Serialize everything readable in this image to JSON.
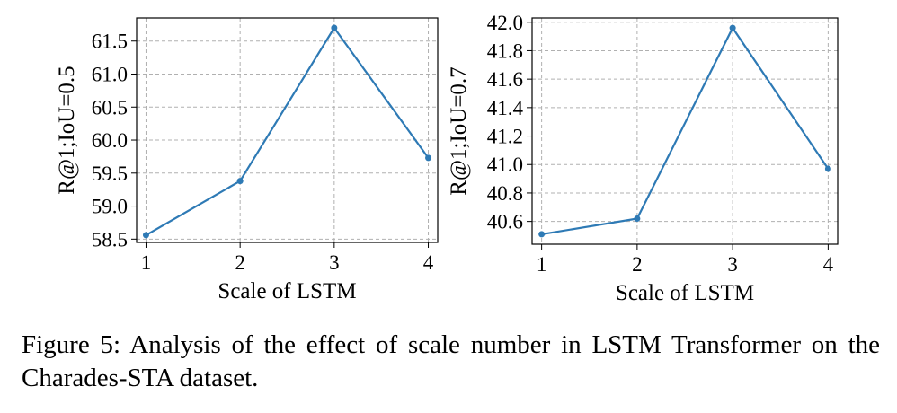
{
  "chart_data": [
    {
      "type": "line",
      "xlabel": "Scale of LSTM",
      "ylabel": "R@1;IoU=0.5",
      "categories": [
        "1",
        "2",
        "3",
        "4"
      ],
      "x": [
        1,
        2,
        3,
        4
      ],
      "values": [
        58.56,
        59.38,
        61.7,
        59.73
      ],
      "yticks": [
        "58.5",
        "59.0",
        "59.5",
        "60.0",
        "60.5",
        "61.0",
        "61.5"
      ],
      "ytick_values": [
        58.5,
        59.0,
        59.5,
        60.0,
        60.5,
        61.0,
        61.5
      ],
      "ylim": [
        58.45,
        61.85
      ],
      "xlim": [
        0.9,
        4.1
      ],
      "grid": true,
      "color": "#2e7ab5"
    },
    {
      "type": "line",
      "xlabel": "Scale of LSTM",
      "ylabel": "R@1;IoU=0.7",
      "categories": [
        "1",
        "2",
        "3",
        "4"
      ],
      "x": [
        1,
        2,
        3,
        4
      ],
      "values": [
        40.51,
        40.62,
        41.96,
        40.97
      ],
      "yticks": [
        "40.6",
        "40.8",
        "41.0",
        "41.2",
        "41.4",
        "41.6",
        "41.8",
        "42.0"
      ],
      "ytick_values": [
        40.6,
        40.8,
        41.0,
        41.2,
        41.4,
        41.6,
        41.8,
        42.0
      ],
      "ylim": [
        40.44,
        42.03
      ],
      "xlim": [
        0.9,
        4.1
      ],
      "grid": true,
      "color": "#2e7ab5"
    }
  ],
  "caption": "Figure 5: Analysis of the effect of scale number in LSTM Transformer on the Charades-STA dataset."
}
